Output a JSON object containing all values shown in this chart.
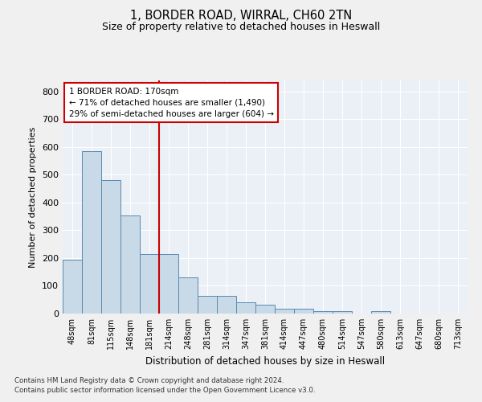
{
  "title1": "1, BORDER ROAD, WIRRAL, CH60 2TN",
  "title2": "Size of property relative to detached houses in Heswall",
  "xlabel": "Distribution of detached houses by size in Heswall",
  "ylabel": "Number of detached properties",
  "footnote1": "Contains HM Land Registry data © Crown copyright and database right 2024.",
  "footnote2": "Contains public sector information licensed under the Open Government Licence v3.0.",
  "categories": [
    "48sqm",
    "81sqm",
    "115sqm",
    "148sqm",
    "181sqm",
    "214sqm",
    "248sqm",
    "281sqm",
    "314sqm",
    "347sqm",
    "381sqm",
    "414sqm",
    "447sqm",
    "480sqm",
    "514sqm",
    "547sqm",
    "580sqm",
    "613sqm",
    "647sqm",
    "680sqm",
    "713sqm"
  ],
  "values": [
    193,
    585,
    480,
    354,
    215,
    215,
    130,
    63,
    63,
    40,
    33,
    17,
    17,
    10,
    10,
    0,
    10,
    0,
    0,
    0,
    0
  ],
  "bar_color": "#c8d9e8",
  "bar_edge_color": "#5a8ab0",
  "background_color": "#eaf0f6",
  "grid_color": "#ffffff",
  "property_line_x": 4.5,
  "property_line_color": "#cc0000",
  "annotation_text": "1 BORDER ROAD: 170sqm\n← 71% of detached houses are smaller (1,490)\n29% of semi-detached houses are larger (604) →",
  "annotation_box_color": "#cc0000",
  "ylim": [
    0,
    840
  ],
  "yticks": [
    0,
    100,
    200,
    300,
    400,
    500,
    600,
    700,
    800
  ],
  "fig_bg": "#f0f0f0"
}
